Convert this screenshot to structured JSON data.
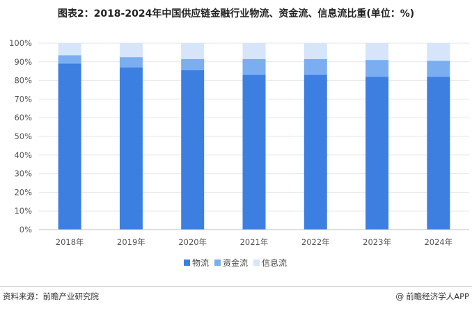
{
  "title": "图表2：2018-2024年中国供应链金融行业物流、资金流、信息流比重(单位：%)",
  "source": "资料来源：前瞻产业研究院",
  "brand": {
    "icon": "at-icon",
    "glyph": "@",
    "text": "前瞻经济学人APP"
  },
  "colors": {
    "物流": "#3d7fe0",
    "资金流": "#7aaef0",
    "信息流": "#d6e5fa",
    "grid": "#e6e6e6",
    "axis": "#bfbfbf"
  },
  "chart_data": {
    "type": "bar",
    "stacked": true,
    "categories": [
      "2018年",
      "2019年",
      "2020年",
      "2021年",
      "2022年",
      "2023年",
      "2024年"
    ],
    "series": [
      {
        "name": "物流",
        "values": [
          89,
          87,
          85.5,
          83,
          83,
          82,
          82
        ]
      },
      {
        "name": "资金流",
        "values": [
          4.5,
          5.5,
          6,
          8.5,
          8.5,
          9,
          8.5
        ]
      },
      {
        "name": "信息流",
        "values": [
          6.5,
          7.5,
          8.5,
          8.5,
          8.5,
          9,
          9.5
        ]
      }
    ],
    "yticks": [
      "0%",
      "10%",
      "20%",
      "30%",
      "40%",
      "50%",
      "60%",
      "70%",
      "80%",
      "90%",
      "100%"
    ],
    "ylim": [
      0,
      100
    ],
    "grid": true,
    "legend_position": "bottom"
  }
}
